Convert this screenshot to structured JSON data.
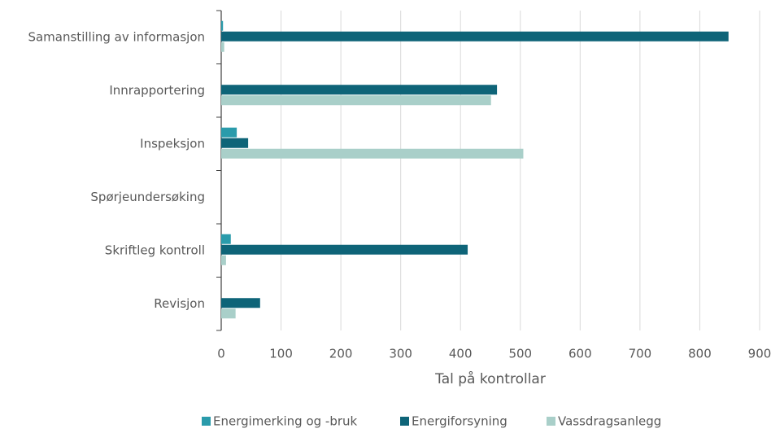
{
  "chart_data": {
    "type": "bar",
    "orientation": "horizontal",
    "categories": [
      "Samanstilling  av informasjon",
      "Innrapportering",
      "Inspeksjon",
      "Spørjeundersøking",
      "Skriftleg kontroll",
      "Revisjon"
    ],
    "series": [
      {
        "name": "Energimerking og -bruk",
        "color": "#2a9bab",
        "values": [
          3,
          0,
          26,
          0,
          16,
          0
        ]
      },
      {
        "name": "Energiforsyning",
        "color": "#0e6478",
        "values": [
          848,
          461,
          45,
          0,
          412,
          65
        ]
      },
      {
        "name": "Vassdragsanlegg",
        "color": "#a9cfc9",
        "values": [
          5,
          451,
          505,
          0,
          8,
          24
        ]
      }
    ],
    "xlabel": "Tal på kontrollar",
    "xlim": [
      0,
      900
    ],
    "xticks": [
      0,
      100,
      200,
      300,
      400,
      500,
      600,
      700,
      800,
      900
    ],
    "grid": true,
    "legend": "bottom"
  }
}
